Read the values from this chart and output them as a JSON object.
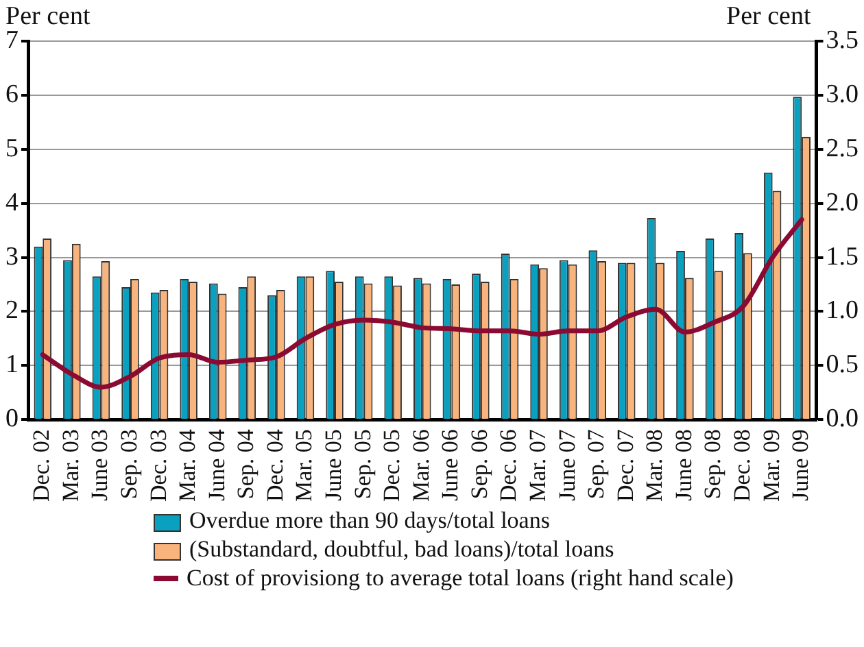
{
  "chart_data": {
    "type": "bar",
    "ylabel": "Per cent",
    "y2label": "Per cent",
    "categories": [
      "Dec. 02",
      "Mar. 03",
      "June 03",
      "Sep. 03",
      "Dec. 03",
      "Mar. 04",
      "June 04",
      "Sep. 04",
      "Dec. 04",
      "Mar. 05",
      "June 05",
      "Sep. 05",
      "Dec. 05",
      "Mar. 06",
      "June 06",
      "Sep. 06",
      "Dec. 06",
      "Mar. 07",
      "June 07",
      "Sep. 07",
      "Dec. 07",
      "Mar. 08",
      "June 08",
      "Sep. 08",
      "Dec. 08",
      "Mar. 09",
      "June 09"
    ],
    "series": [
      {
        "name": "Overdue more than 90 days/total loans",
        "color": "#0aa0c0",
        "values": [
          3.2,
          2.95,
          2.65,
          2.45,
          2.35,
          2.6,
          2.52,
          2.45,
          2.3,
          2.65,
          2.75,
          2.65,
          2.65,
          2.62,
          2.6,
          2.7,
          3.07,
          2.87,
          2.95,
          3.13,
          2.9,
          3.73,
          3.12,
          3.35,
          3.45,
          4.57,
          5.97
        ]
      },
      {
        "name": "(Substandard, doubtful, bad loans)/total loans",
        "color": "#f8b47c",
        "values": [
          3.35,
          3.25,
          2.93,
          2.6,
          2.4,
          2.55,
          2.33,
          2.65,
          2.4,
          2.65,
          2.55,
          2.52,
          2.48,
          2.52,
          2.5,
          2.55,
          2.6,
          2.8,
          2.87,
          2.93,
          2.9,
          2.9,
          2.62,
          2.75,
          3.08,
          4.23,
          5.23
        ]
      },
      {
        "name": "Cost of provisiong to average total loans (right hand scale)",
        "type": "line",
        "axis": "y2",
        "color": "#8b0a32",
        "values": [
          0.6,
          0.42,
          0.3,
          0.4,
          0.57,
          0.6,
          0.53,
          0.55,
          0.58,
          0.75,
          0.88,
          0.92,
          0.9,
          0.85,
          0.84,
          0.82,
          0.82,
          0.79,
          0.82,
          0.82,
          0.95,
          1.02,
          0.81,
          0.9,
          1.05,
          1.5,
          1.85
        ]
      }
    ],
    "ylim": [
      0,
      7
    ],
    "yticks": [
      0,
      1,
      2,
      3,
      4,
      5,
      6,
      7
    ],
    "y2lim": [
      0,
      3.5
    ],
    "y2ticks": [
      {
        "value": 0,
        "label": "0.0"
      },
      {
        "value": 0.5,
        "label": "0.5"
      },
      {
        "value": 1,
        "label": "1.0"
      },
      {
        "value": 1.5,
        "label": "1.5"
      },
      {
        "value": 2,
        "label": "2.0"
      },
      {
        "value": 2.5,
        "label": "2.5"
      },
      {
        "value": 3,
        "label": "3.0"
      },
      {
        "value": 3.5,
        "label": "3.5"
      }
    ],
    "grid": "y",
    "legend": "bottom",
    "marker": "none",
    "line_style": "solid"
  }
}
